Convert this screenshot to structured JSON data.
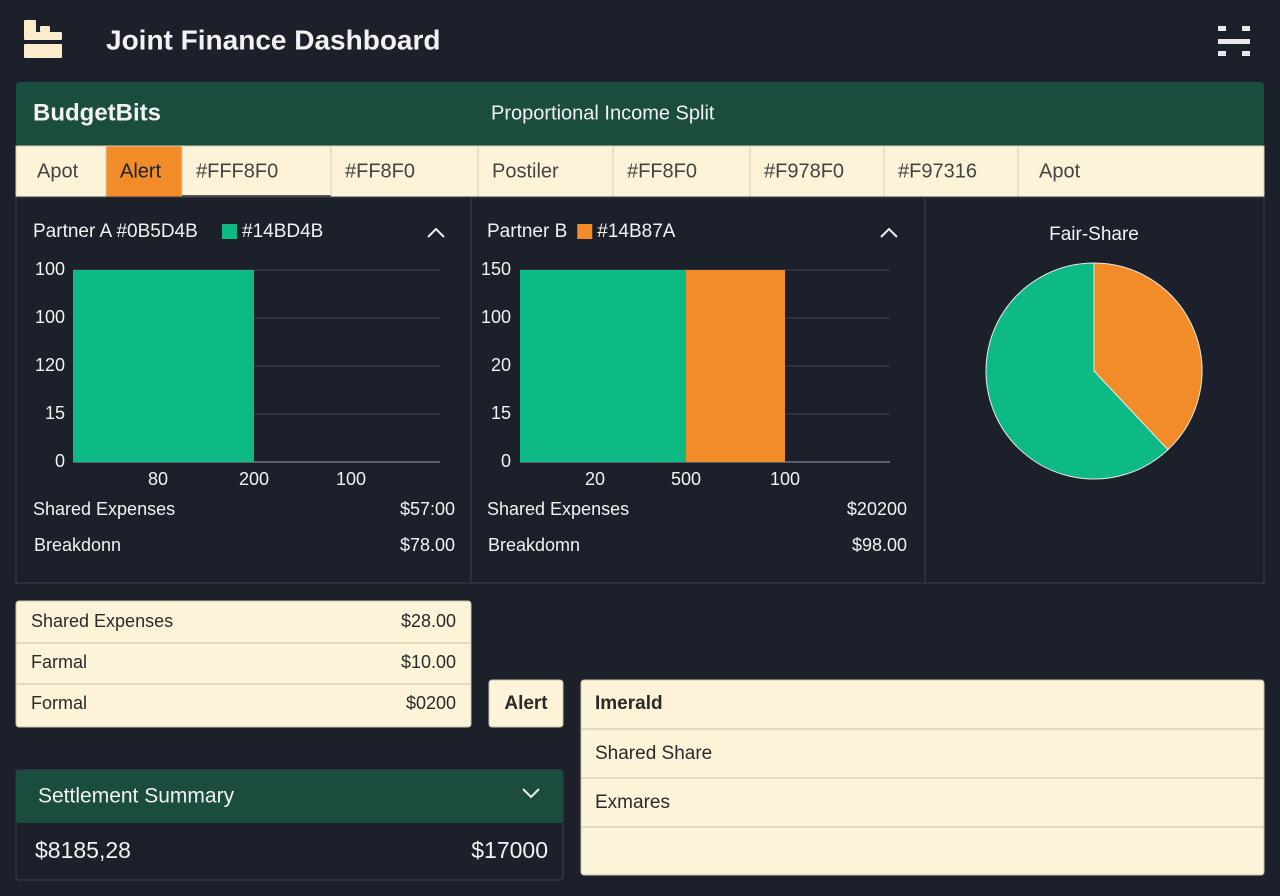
{
  "header": {
    "title": "Joint Finance Dashboard"
  },
  "banner": {
    "brand": "BudgetBits",
    "subtitle": "Proportional Income Split"
  },
  "tabs": [
    "Apot",
    "Alert",
    "#FFF8F0",
    "#FF8F0",
    "Postiler",
    "#FF8F0",
    "#F978F0",
    "#F97316",
    "Apot"
  ],
  "panels": [
    {
      "title": "Partner A #0B5D4B",
      "legend": "#14BD4B",
      "y_labels": [
        100,
        100,
        120,
        15,
        0
      ],
      "x_labels": [
        80,
        200,
        100
      ],
      "rows": [
        {
          "label": "Shared Expenses",
          "value": "$57:00"
        },
        {
          "label": "Breakdonn",
          "value": "$78.00"
        }
      ]
    },
    {
      "title": "Partner B",
      "legend": "#14B87A",
      "y_labels": [
        150,
        100,
        20,
        15,
        0
      ],
      "x_labels": [
        20,
        500,
        100
      ],
      "rows": [
        {
          "label": "Shared Expenses",
          "value": "$20200"
        },
        {
          "label": "Breakdomn",
          "value": "$98.00"
        }
      ]
    }
  ],
  "fair_share": {
    "title": "Fair-Share",
    "chart_data": {
      "type": "pie",
      "values": [
        38,
        62
      ],
      "colors": [
        "#f28c28",
        "#0dba86"
      ]
    }
  },
  "expenses_table": [
    {
      "label": "Shared Expenses",
      "value": "$28.00"
    },
    {
      "label": "Farmal",
      "value": "$10.00"
    },
    {
      "label": "Formal",
      "value": "$0200"
    }
  ],
  "alert_button": "Alert",
  "side_table": {
    "header": "Imerald",
    "rows": [
      "Shared Share",
      "Exmares"
    ]
  },
  "settlement": {
    "title": "Settlement Summary",
    "left": "$8185,28",
    "right": "$17000"
  }
}
